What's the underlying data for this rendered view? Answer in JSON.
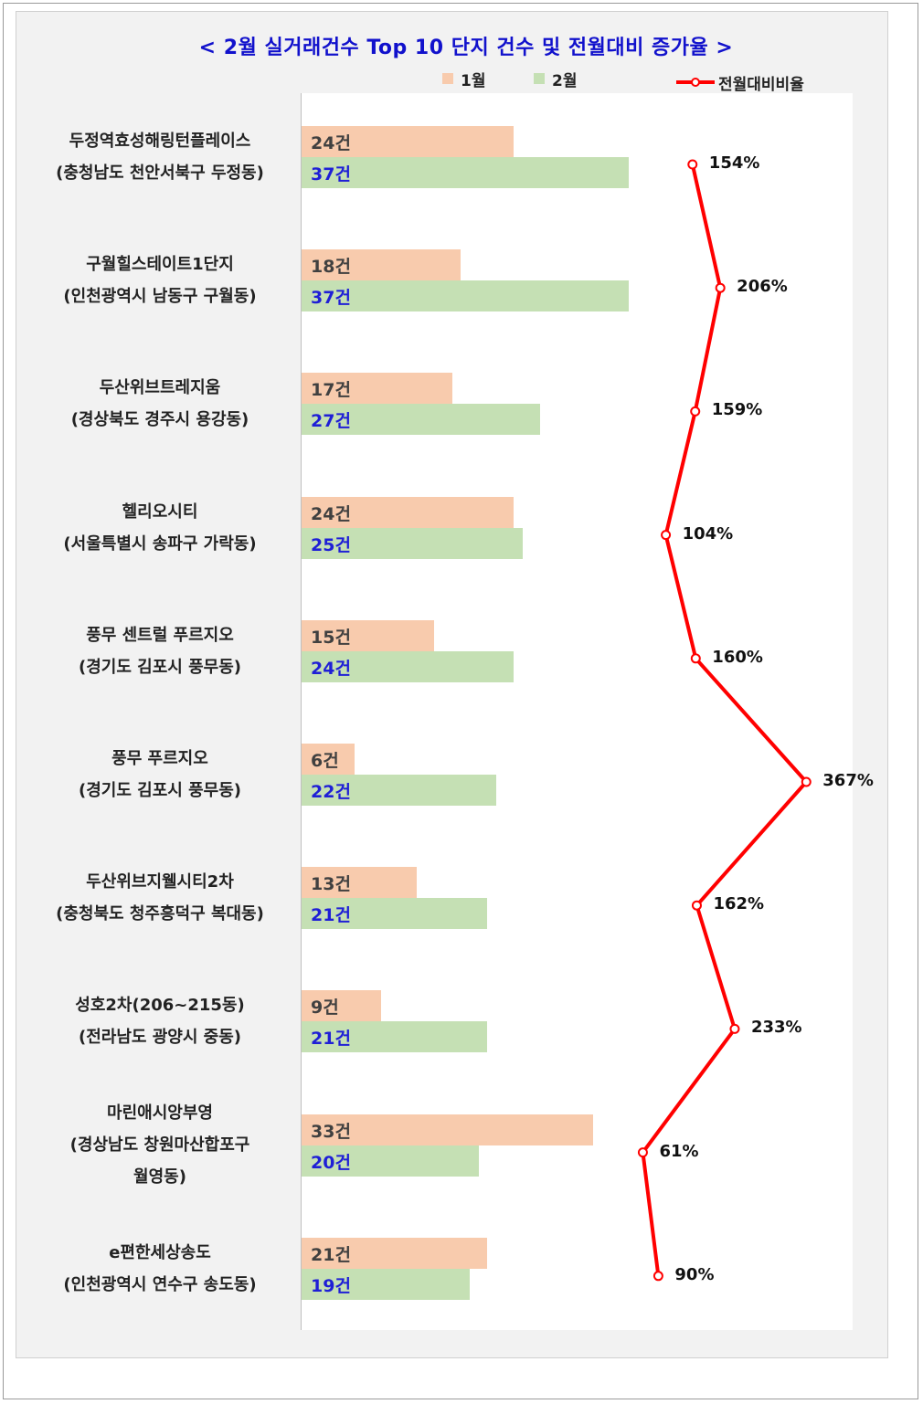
{
  "chart_data": {
    "type": "bar",
    "orientation": "horizontal",
    "title": "< 2월 실거래건수 Top 10 단지 건수 및 전월대비 증가율 >",
    "categories": [
      {
        "name": "두정역효성해링턴플레이스",
        "location": "(충청남도 천안서북구 두정동)"
      },
      {
        "name": "구월힐스테이트1단지",
        "location": "(인천광역시 남동구 구월동)"
      },
      {
        "name": "두산위브트레지움",
        "location": "(경상북도 경주시 용강동)"
      },
      {
        "name": "헬리오시티",
        "location": "(서울특별시 송파구 가락동)"
      },
      {
        "name": "풍무 센트럴 푸르지오",
        "location": "(경기도 김포시 풍무동)"
      },
      {
        "name": "풍무 푸르지오",
        "location": "(경기도 김포시 풍무동)"
      },
      {
        "name": "두산위브지웰시티2차",
        "location": "(충청북도 청주흥덕구 복대동)"
      },
      {
        "name": "성호2차(206~215동)",
        "location": "(전라남도 광양시 중동)"
      },
      {
        "name": "마린애시앙부영",
        "location": "(경상남도 창원마산합포구",
        "location2": "월영동)"
      },
      {
        "name": "e편한세상송도",
        "location": "(인천광역시 연수구 송도동)"
      }
    ],
    "series": [
      {
        "name": "1월",
        "color": "#f8cbad",
        "label_color": "#404040",
        "values": [
          24,
          18,
          17,
          24,
          15,
          6,
          13,
          9,
          33,
          21
        ],
        "labels": [
          "24건",
          "18건",
          "17건",
          "24건",
          "15건",
          "6건",
          "13건",
          "9건",
          "33건",
          "21건"
        ]
      },
      {
        "name": "2월",
        "color": "#c5e0b4",
        "label_color": "#1f1fd6",
        "values": [
          37,
          37,
          27,
          25,
          24,
          22,
          21,
          21,
          20,
          19
        ],
        "labels": [
          "37건",
          "37건",
          "27건",
          "25건",
          "24건",
          "22건",
          "21건",
          "21건",
          "20건",
          "19건"
        ]
      }
    ],
    "ratio_series": {
      "name": "전월대비비율",
      "color": "#ff0000",
      "values": [
        154,
        206,
        159,
        104,
        160,
        367,
        162,
        233,
        61,
        90
      ],
      "labels": [
        "154%",
        "206%",
        "159%",
        "104%",
        "160%",
        "367%",
        "162%",
        "233%",
        "61%",
        "90%"
      ]
    },
    "legend": [
      "1월",
      "2월",
      "전월대비비율"
    ],
    "legend_position": "top",
    "grid": false
  }
}
